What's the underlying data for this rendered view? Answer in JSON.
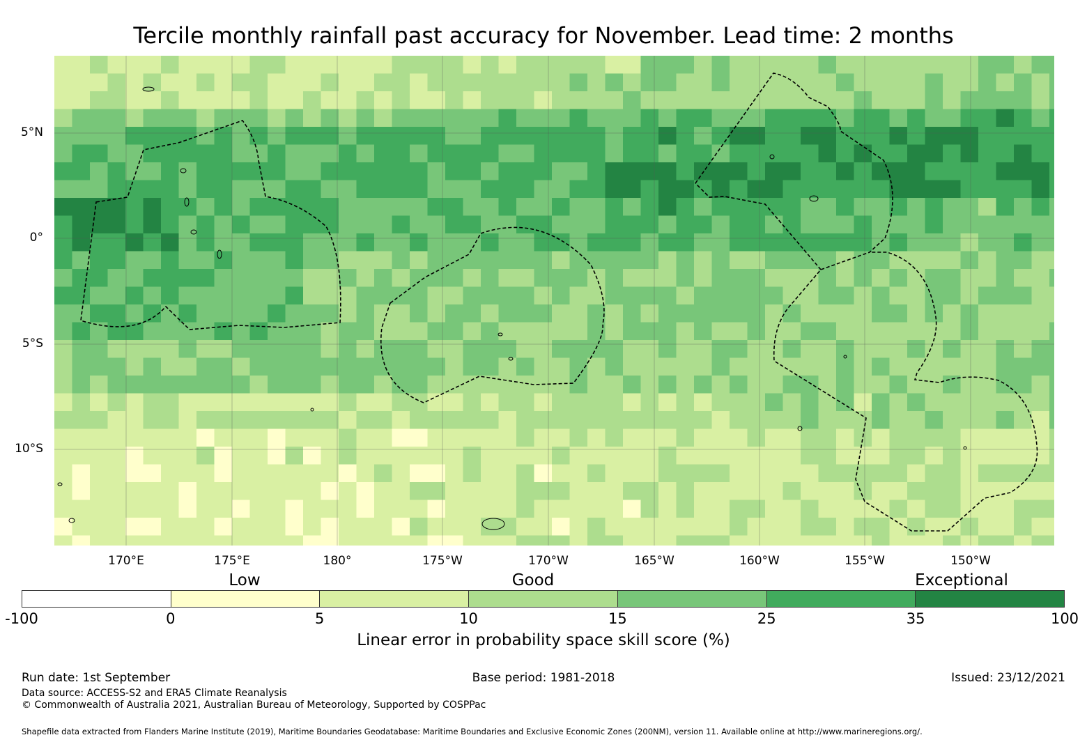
{
  "title": "Tercile monthly rainfall past accuracy for November. Lead time: 2 months",
  "map": {
    "lat_labels": [
      {
        "text": "5°N",
        "lat": 5
      },
      {
        "text": "0°",
        "lat": 0
      },
      {
        "text": "5°S",
        "lat": -5
      },
      {
        "text": "10°S",
        "lat": -10
      }
    ],
    "lon_labels": [
      "170°E",
      "175°E",
      "180°",
      "175°W",
      "170°W",
      "165°W",
      "160°W",
      "155°W",
      "150°W"
    ],
    "gridlines": true,
    "palette": {
      "neg": "#ffffff",
      "c0_5": "#ffffcc",
      "c5_10": "#d9f0a3",
      "c10_15": "#addd8e",
      "c15_25": "#78c679",
      "c25_35": "#41ab5d",
      "c35_100": "#238443"
    }
  },
  "legend": {
    "categories": [
      {
        "label": "Low",
        "position": "left"
      },
      {
        "label": "Good",
        "position": "center"
      },
      {
        "label": "Exceptional",
        "position": "right"
      }
    ],
    "ticks": [
      "-100",
      "0",
      "5",
      "10",
      "15",
      "25",
      "35",
      "100"
    ],
    "colors": [
      "#ffffff",
      "#ffffcc",
      "#d9f0a3",
      "#addd8e",
      "#78c679",
      "#41ab5d",
      "#238443"
    ],
    "label": "Linear error in probability space skill score (%)"
  },
  "footer": {
    "run_date": "Run date: 1st September",
    "base_period": "Base period: 1981-2018",
    "issued": "Issued: 23/12/2021",
    "data_source": "Data source: ACCESS-S2 and ERA5 Climate Reanalysis",
    "copyright": "© Commonwealth of Australia 2021, Australian Bureau of Meteorology, Supported by COSPPac",
    "shapefile": "Shapefile data extracted from Flanders Marine Institute (2019), Maritime Boundaries Geodatabase: Maritime Boundaries and Exclusive Economic Zones (200NM), version 11. Available online at http://www.marineregions.org/."
  }
}
